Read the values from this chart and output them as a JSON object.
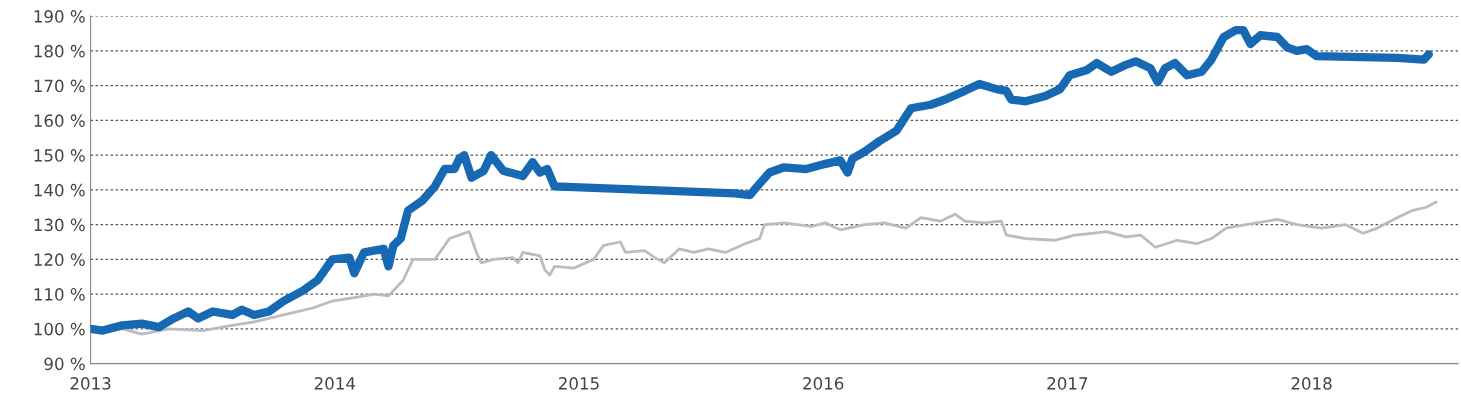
{
  "chart_data": {
    "type": "line",
    "xlim": [
      2013,
      2018.6
    ],
    "xticks": [
      2013,
      2014,
      2015,
      2016,
      2017,
      2018
    ],
    "ylim": [
      90,
      190
    ],
    "yticks": [
      {
        "value": 90,
        "label": "90 %"
      },
      {
        "value": 100,
        "label": "100 %"
      },
      {
        "value": 110,
        "label": "110 %"
      },
      {
        "value": 120,
        "label": "120 %"
      },
      {
        "value": 130,
        "label": "130 %"
      },
      {
        "value": 140,
        "label": "140 %"
      },
      {
        "value": 150,
        "label": "150 %"
      },
      {
        "value": 160,
        "label": "160 %"
      },
      {
        "value": 170,
        "label": "170 %"
      },
      {
        "value": 180,
        "label": "180 %"
      },
      {
        "value": 190,
        "label": "190 %"
      }
    ],
    "grid": "y",
    "marker": "none",
    "line_style": "solid",
    "series": [
      {
        "color": "#b9bcc0",
        "x": [
          2013.0,
          2013.13,
          2013.21,
          2013.32,
          2013.46,
          2013.58,
          2013.67,
          2013.79,
          2013.91,
          2013.99,
          2014.08,
          2014.16,
          2014.22,
          2014.28,
          2014.32,
          2014.41,
          2014.47,
          2014.51,
          2014.55,
          2014.58,
          2014.6,
          2014.65,
          2014.73,
          2014.75,
          2014.77,
          2014.84,
          2014.86,
          2014.88,
          2014.9,
          2014.98,
          2015.06,
          2015.1,
          2015.17,
          2015.19,
          2015.27,
          2015.31,
          2015.35,
          2015.41,
          2015.47,
          2015.53,
          2015.6,
          2015.68,
          2015.74,
          2015.76,
          2015.84,
          2015.95,
          2016.01,
          2016.07,
          2016.17,
          2016.25,
          2016.34,
          2016.4,
          2016.48,
          2016.54,
          2016.58,
          2016.66,
          2016.73,
          2016.75,
          2016.83,
          2016.95,
          2017.03,
          2017.1,
          2017.16,
          2017.24,
          2017.3,
          2017.36,
          2017.45,
          2017.53,
          2017.59,
          2017.65,
          2017.73,
          2017.86,
          2017.94,
          2018.04,
          2018.14,
          2018.21,
          2018.27,
          2018.35,
          2018.41,
          2018.47,
          2018.51
        ],
        "values": [
          100,
          100,
          98.5,
          100,
          99.5,
          101,
          102,
          104,
          106,
          108,
          109,
          110,
          109.5,
          114,
          120,
          120,
          126,
          127,
          128,
          122,
          119,
          120,
          120.5,
          119,
          122,
          121,
          117,
          115.5,
          118,
          117.5,
          120,
          124,
          125,
          122,
          122.5,
          120.5,
          119,
          123,
          122,
          123,
          122,
          124.5,
          126,
          130,
          130.5,
          129.5,
          130.5,
          128.5,
          130,
          130.5,
          129,
          132,
          131,
          133,
          131,
          130.5,
          131,
          127,
          126,
          125.5,
          127,
          127.5,
          128,
          126.5,
          127,
          123.5,
          125.5,
          124.5,
          126,
          129,
          130,
          131.5,
          130,
          129,
          130,
          127.5,
          129,
          132,
          134,
          135,
          136.5
        ]
      },
      {
        "color": "#1769b4",
        "x": [
          2013.0,
          2013.05,
          2013.13,
          2013.21,
          2013.28,
          2013.34,
          2013.4,
          2013.44,
          2013.5,
          2013.58,
          2013.62,
          2013.67,
          2013.73,
          2013.79,
          2013.87,
          2013.93,
          2013.99,
          2014.06,
          2014.08,
          2014.12,
          2014.2,
          2014.22,
          2014.24,
          2014.27,
          2014.3,
          2014.36,
          2014.41,
          2014.45,
          2014.49,
          2014.51,
          2014.53,
          2014.56,
          2014.61,
          2014.64,
          2014.69,
          2014.77,
          2014.81,
          2014.84,
          2014.87,
          2014.9,
          2015.27,
          2015.64,
          2015.7,
          2015.73,
          2015.78,
          2015.84,
          2015.93,
          2016.01,
          2016.07,
          2016.1,
          2016.12,
          2016.17,
          2016.23,
          2016.3,
          2016.36,
          2016.44,
          2016.5,
          2016.58,
          2016.64,
          2016.71,
          2016.75,
          2016.77,
          2016.83,
          2016.91,
          2016.97,
          2017.01,
          2017.08,
          2017.12,
          2017.18,
          2017.24,
          2017.28,
          2017.34,
          2017.37,
          2017.4,
          2017.44,
          2017.49,
          2017.55,
          2017.59,
          2017.64,
          2017.69,
          2017.72,
          2017.75,
          2017.79,
          2017.86,
          2017.9,
          2017.94,
          2017.98,
          2018.02,
          2018.35,
          2018.46,
          2018.48
        ],
        "values": [
          100,
          99.5,
          101,
          101.5,
          100.5,
          103,
          105,
          103,
          105,
          104,
          105.5,
          104,
          105,
          108,
          111,
          114,
          120,
          120.5,
          116,
          122,
          123,
          118,
          124,
          126,
          134,
          137,
          141,
          146,
          146,
          149,
          150,
          143.5,
          145.5,
          150,
          145.5,
          144,
          148,
          145,
          146,
          141,
          140,
          139,
          138.5,
          141,
          145,
          146.5,
          146,
          147.5,
          148.5,
          145,
          149,
          151,
          154,
          157,
          163.5,
          164.5,
          166,
          168.5,
          170.5,
          169,
          168.5,
          166,
          165.5,
          167,
          169,
          173,
          174.5,
          176.5,
          174,
          176,
          177,
          175,
          171,
          175,
          176.5,
          173,
          174,
          177.5,
          184,
          186,
          186,
          182,
          184.5,
          184,
          181,
          180,
          180.5,
          178.5,
          178,
          177.5,
          179
        ]
      }
    ]
  }
}
